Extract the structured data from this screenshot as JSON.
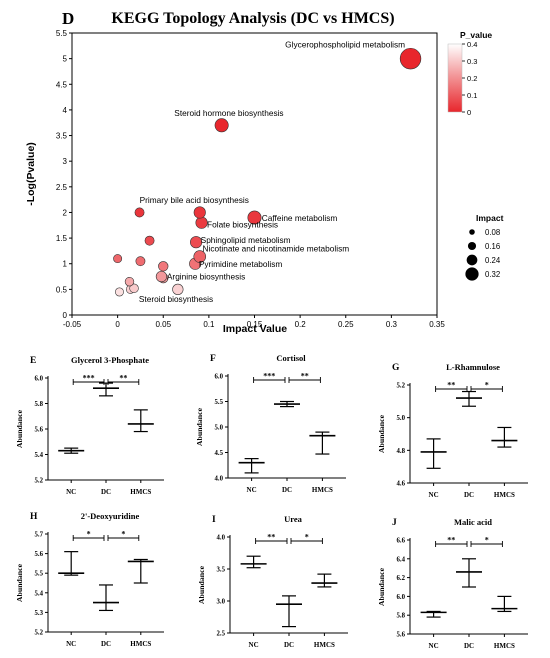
{
  "colors": {
    "gradient_high": "#ffffff",
    "gradient_low": "#e8262c",
    "axis": "#000000",
    "bubble_stroke": "#222222"
  },
  "chart_data": [
    {
      "panel": "D",
      "type": "scatter",
      "title": "KEGG Topology Analysis (DC vs HMCS)",
      "xlabel": "Impact Value",
      "ylabel": "-Log(Pvalue)",
      "xlim": [
        -0.05,
        0.35
      ],
      "ylim": [
        0,
        5.5
      ],
      "xticks": [
        "-0.05",
        "0",
        "0.05",
        "0.1",
        "0.15",
        "0.2",
        "0.25",
        "0.3",
        "0.35"
      ],
      "yticks": [
        "0",
        "0.5",
        "1",
        "1.5",
        "2",
        "2.5",
        "3",
        "3.5",
        "4",
        "4.5",
        "5",
        "5.5"
      ],
      "grid": false,
      "color_legend": {
        "title": "P_value",
        "ticks": [
          "0",
          "0.1",
          "0.2",
          "0.3",
          "0.4"
        ],
        "range": [
          0,
          0.4
        ],
        "placement": "top-right"
      },
      "size_legend": {
        "title": "Impact",
        "labels": [
          "0.08",
          "0.16",
          "0.24",
          "0.32"
        ],
        "values": [
          0.08,
          0.16,
          0.24,
          0.32
        ],
        "placement": "right"
      },
      "points": [
        {
          "name": "Glycerophospholipid metabolism",
          "x": 0.321,
          "y": 5.0,
          "impact": 0.321,
          "p": 1e-05
        },
        {
          "name": "Steroid hormone biosynthesis",
          "x": 0.114,
          "y": 3.7,
          "impact": 0.16,
          "p": 0.0002
        },
        {
          "name": "Primary bile acid biosynthesis",
          "x": 0.09,
          "y": 2.0,
          "impact": 0.12,
          "p": 0.01
        },
        {
          "name": "Caffeine metabolism",
          "x": 0.15,
          "y": 1.9,
          "impact": 0.16,
          "p": 0.013
        },
        {
          "name": "Folate biosynthesis",
          "x": 0.092,
          "y": 1.8,
          "impact": 0.12,
          "p": 0.016
        },
        {
          "name": "Sphingolipid metabolism",
          "x": 0.086,
          "y": 1.42,
          "impact": 0.12,
          "p": 0.038
        },
        {
          "name": "Nicotinate and nicotinamide metabolism",
          "x": 0.09,
          "y": 1.14,
          "impact": 0.13,
          "p": 0.072
        },
        {
          "name": "Pyrimidine metabolism",
          "x": 0.085,
          "y": 1.0,
          "impact": 0.12,
          "p": 0.1
        },
        {
          "name": "Arginine biosynthesis",
          "x": 0.048,
          "y": 0.75,
          "impact": 0.1,
          "p": 0.18
        },
        {
          "name": "Steroid biosynthesis",
          "x": 0.066,
          "y": 0.5,
          "impact": 0.1,
          "p": 0.32
        },
        {
          "name": "",
          "x": 0.024,
          "y": 2.0,
          "impact": 0.07,
          "p": 0.01
        },
        {
          "name": "",
          "x": 0.035,
          "y": 1.45,
          "impact": 0.07,
          "p": 0.035
        },
        {
          "name": "",
          "x": 0.025,
          "y": 1.05,
          "impact": 0.07,
          "p": 0.09
        },
        {
          "name": "",
          "x": 0.0,
          "y": 1.1,
          "impact": 0.05,
          "p": 0.08
        },
        {
          "name": "",
          "x": 0.05,
          "y": 0.95,
          "impact": 0.08,
          "p": 0.11
        },
        {
          "name": "",
          "x": 0.013,
          "y": 0.65,
          "impact": 0.06,
          "p": 0.22
        },
        {
          "name": "",
          "x": 0.018,
          "y": 0.52,
          "impact": 0.06,
          "p": 0.3
        },
        {
          "name": "",
          "x": 0.014,
          "y": 0.5,
          "impact": 0.05,
          "p": 0.32
        },
        {
          "name": "",
          "x": 0.002,
          "y": 0.45,
          "impact": 0.05,
          "p": 0.36
        },
        {
          "name": "",
          "x": 0.05,
          "y": 0.72,
          "impact": 0.08,
          "p": 0.19
        }
      ]
    },
    {
      "panel": "E",
      "type": "mean_range",
      "title": "Glycerol 3-Phosphate",
      "ylabel": "Abundance",
      "categories": [
        "NC",
        "DC",
        "HMCS"
      ],
      "ylim": [
        5.2,
        6.0
      ],
      "yticks": [
        "5.2",
        "5.4",
        "5.6",
        "5.8",
        "6.0"
      ],
      "mean": [
        5.43,
        5.92,
        5.64
      ],
      "low": [
        5.41,
        5.86,
        5.58
      ],
      "high": [
        5.45,
        5.96,
        5.75
      ],
      "significance": [
        {
          "from": 0,
          "to": 1,
          "label": "***"
        },
        {
          "from": 1,
          "to": 2,
          "label": "**"
        }
      ]
    },
    {
      "panel": "F",
      "type": "mean_range",
      "title": "Cortisol",
      "ylabel": "Abundance",
      "categories": [
        "NC",
        "DC",
        "HMCS"
      ],
      "ylim": [
        4.0,
        6.0
      ],
      "yticks": [
        "4.0",
        "4.5",
        "5.0",
        "5.5",
        "6.0"
      ],
      "mean": [
        4.3,
        5.45,
        4.83
      ],
      "low": [
        4.1,
        5.4,
        4.47
      ],
      "high": [
        4.38,
        5.5,
        4.9
      ],
      "significance": [
        {
          "from": 0,
          "to": 1,
          "label": "***"
        },
        {
          "from": 1,
          "to": 2,
          "label": "**"
        }
      ]
    },
    {
      "panel": "G",
      "type": "mean_range",
      "title": "L-Rhamnulose",
      "ylabel": "Abundance",
      "categories": [
        "NC",
        "DC",
        "HMCS"
      ],
      "ylim": [
        4.6,
        5.2
      ],
      "yticks": [
        "4.6",
        "4.8",
        "5.0",
        "5.2"
      ],
      "mean": [
        4.79,
        5.12,
        4.86
      ],
      "low": [
        4.69,
        5.07,
        4.82
      ],
      "high": [
        4.87,
        5.16,
        4.94
      ],
      "significance": [
        {
          "from": 0,
          "to": 1,
          "label": "**"
        },
        {
          "from": 1,
          "to": 2,
          "label": "*"
        }
      ]
    },
    {
      "panel": "H",
      "type": "mean_range",
      "title": "2'-Deoxyuridine",
      "ylabel": "Abundance",
      "categories": [
        "NC",
        "DC",
        "HMCS"
      ],
      "ylim": [
        5.2,
        5.7
      ],
      "yticks": [
        "5.2",
        "5.3",
        "5.4",
        "5.5",
        "5.6",
        "5.7"
      ],
      "mean": [
        5.5,
        5.35,
        5.56
      ],
      "low": [
        5.49,
        5.31,
        5.45
      ],
      "high": [
        5.61,
        5.44,
        5.57
      ],
      "significance": [
        {
          "from": 0,
          "to": 1,
          "label": "*"
        },
        {
          "from": 1,
          "to": 2,
          "label": "*"
        }
      ]
    },
    {
      "panel": "I",
      "type": "mean_range",
      "title": "Urea",
      "ylabel": "Abundance",
      "categories": [
        "NC",
        "DC",
        "HMCS"
      ],
      "ylim": [
        2.5,
        4.0
      ],
      "yticks": [
        "2.5",
        "3.0",
        "3.5",
        "4.0"
      ],
      "mean": [
        3.58,
        2.95,
        3.28
      ],
      "low": [
        3.52,
        2.6,
        3.22
      ],
      "high": [
        3.7,
        3.08,
        3.42
      ],
      "significance": [
        {
          "from": 0,
          "to": 1,
          "label": "**"
        },
        {
          "from": 1,
          "to": 2,
          "label": "*"
        }
      ]
    },
    {
      "panel": "J",
      "type": "mean_range",
      "title": "Malic acid",
      "ylabel": "Abundance",
      "categories": [
        "NC",
        "DC",
        "HMCS"
      ],
      "ylim": [
        5.6,
        6.6
      ],
      "yticks": [
        "5.6",
        "5.8",
        "6.0",
        "6.2",
        "6.4",
        "6.6"
      ],
      "mean": [
        5.83,
        6.26,
        5.87
      ],
      "low": [
        5.78,
        6.1,
        5.84
      ],
      "high": [
        5.84,
        6.4,
        6.0
      ],
      "significance": [
        {
          "from": 0,
          "to": 1,
          "label": "**"
        },
        {
          "from": 1,
          "to": 2,
          "label": "*"
        }
      ]
    }
  ]
}
